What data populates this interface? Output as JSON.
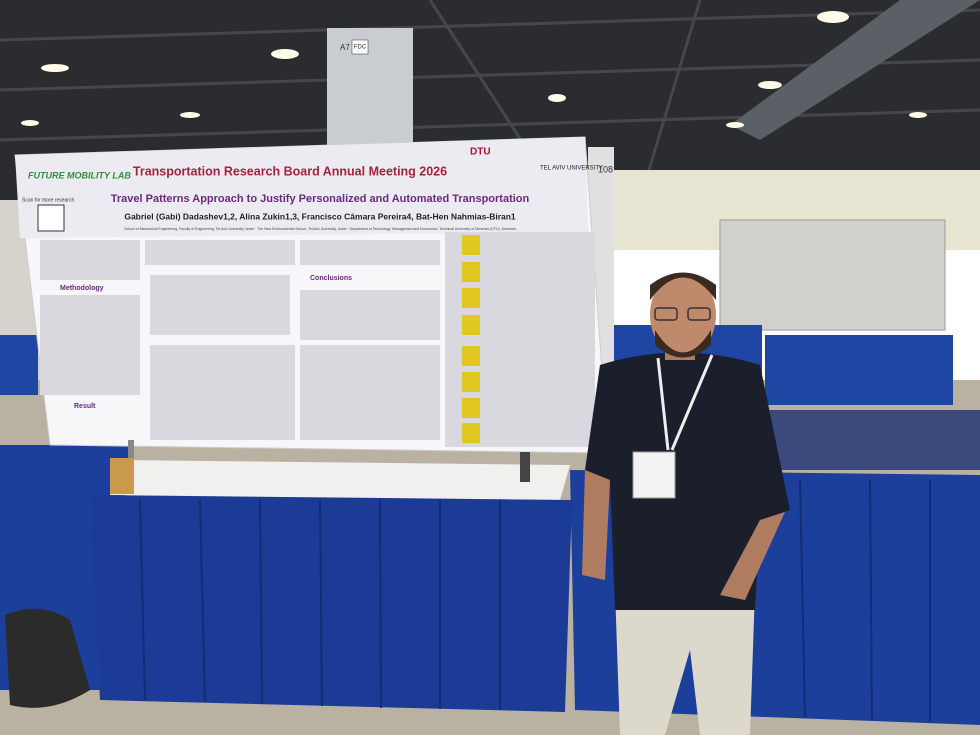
{
  "poster": {
    "lab_logo": "FUTURE MOBILITY LAB",
    "event": "Transportation Research Board Annual Meeting 2026",
    "dtu": "DTU",
    "university": "TEL AVIV UNIVERSITY",
    "scan": "Scan for more research",
    "title": "Travel Patterns Approach to Justify Personalized and Automated Transportation",
    "authors": "Gabriel (Gabi) Dadashev1,2, Alina Zukin1,3, Francisco Câmara Pereira4, Bat-Hen Nahmias-Biran1",
    "affiliations": "School of Mechanical Engineering, Faculty of Engineering, Tel Aviv University, Israel · The New Environmental School, Tel Aviv University, Israel · Department of Technology, Management and Economics, Technical University of Denmark (DTU), Denmark",
    "sections": [
      "Methodology",
      "Result",
      "Conclusions"
    ]
  },
  "booth": {
    "pillar": "A7",
    "sign": "FDC",
    "number": "108"
  }
}
